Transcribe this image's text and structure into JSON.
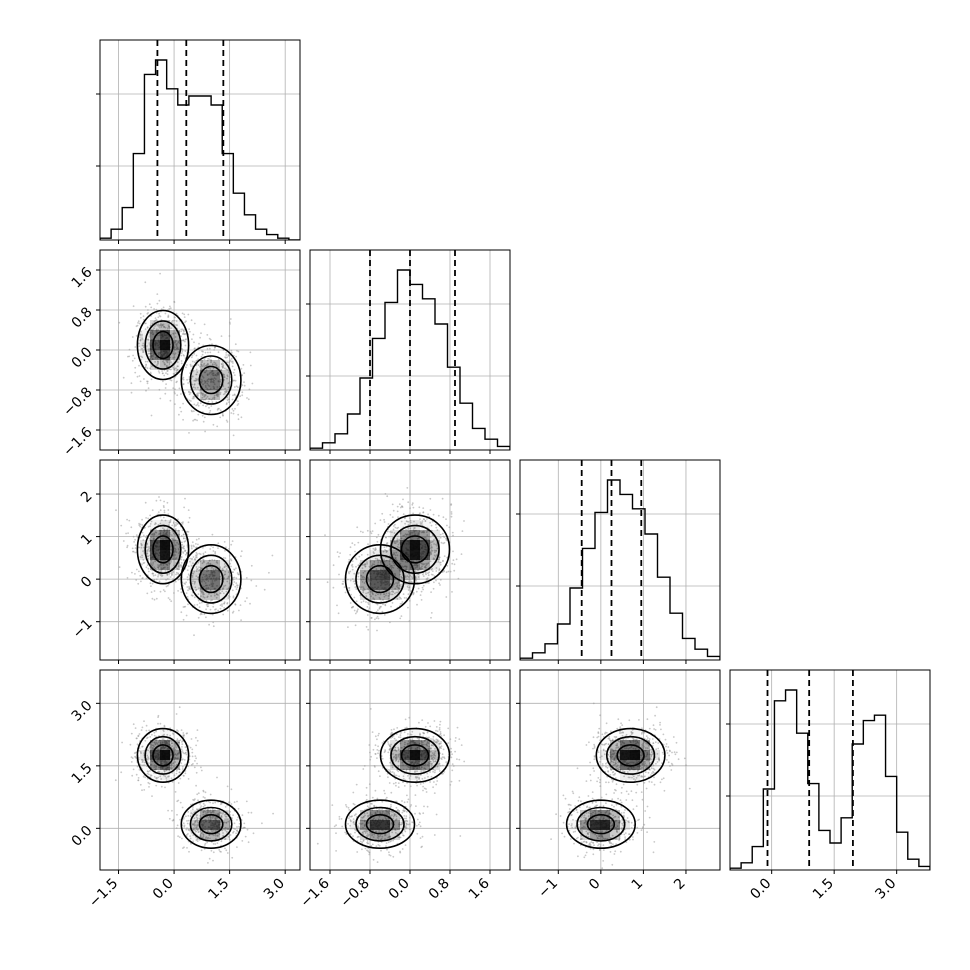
{
  "chart_data": {
    "type": "corner",
    "n_params": 4,
    "grid": true,
    "colors": {
      "line": "#000000",
      "scatter": "#9a9a9a",
      "grid": "#b0b0b0",
      "fill": "#000000"
    },
    "params": [
      {
        "index": 0,
        "range": [
          -2.0,
          3.4
        ],
        "ticks": [
          -1.5,
          0.0,
          1.5,
          3.0
        ],
        "tick_labels": [
          "−1.5",
          "0.0",
          "1.5",
          "3.0"
        ],
        "quantiles": [
          -0.45,
          0.33,
          1.33
        ],
        "hist_counts": [
          1,
          6,
          18,
          48,
          92,
          100,
          84,
          75,
          80,
          80,
          75,
          48,
          26,
          14,
          6,
          3,
          1,
          0
        ]
      },
      {
        "index": 1,
        "range": [
          -2.0,
          2.0
        ],
        "ticks": [
          -1.6,
          -0.8,
          0.0,
          0.8,
          1.6
        ],
        "tick_labels": [
          "−1.6",
          "−0.8",
          "0.0",
          "0.8",
          "1.6"
        ],
        "quantiles": [
          -0.8,
          0.0,
          0.9
        ],
        "hist_counts": [
          1,
          4,
          9,
          20,
          40,
          62,
          82,
          100,
          92,
          84,
          70,
          46,
          26,
          12,
          6,
          2
        ]
      },
      {
        "index": 2,
        "range": [
          -1.9,
          2.8
        ],
        "ticks": [
          -1,
          0,
          1,
          2
        ],
        "tick_labels": [
          "−1",
          "0",
          "1",
          "2"
        ],
        "quantiles": [
          -0.45,
          0.25,
          0.95
        ],
        "hist_counts": [
          1,
          4,
          9,
          20,
          40,
          62,
          82,
          100,
          92,
          84,
          70,
          46,
          26,
          12,
          6,
          2
        ]
      },
      {
        "index": 3,
        "range": [
          -1.0,
          3.8
        ],
        "ticks": [
          0.0,
          1.5,
          3.0
        ],
        "tick_labels": [
          "0.0",
          "1.5",
          "3.0"
        ],
        "quantiles": [
          -0.1,
          0.9,
          1.95
        ],
        "hist_counts": [
          1,
          4,
          13,
          45,
          94,
          100,
          76,
          48,
          22,
          15,
          29,
          70,
          83,
          86,
          52,
          21,
          6,
          2
        ]
      }
    ],
    "modes": [
      {
        "mean": [
          -0.3,
          0.1,
          0.7,
          1.75
        ],
        "std": [
          0.3,
          0.3,
          0.35,
          0.28
        ],
        "weight": 0.55
      },
      {
        "mean": [
          1.0,
          -0.6,
          0.0,
          0.1
        ],
        "std": [
          0.35,
          0.3,
          0.35,
          0.25
        ],
        "weight": 0.45
      }
    ]
  }
}
